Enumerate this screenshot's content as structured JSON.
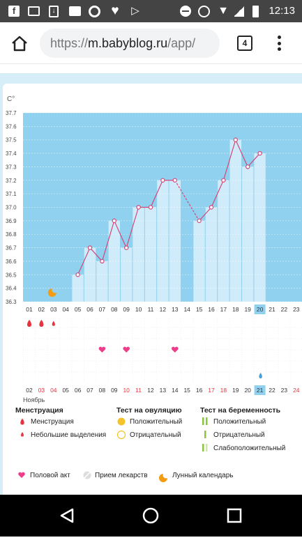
{
  "status_bar": {
    "time": "12:13",
    "left_icons": [
      "facebook-icon",
      "image-icon",
      "download-icon",
      "message-icon",
      "chrome-icon",
      "heart-icon",
      "play-store-icon"
    ],
    "right_icons": [
      "dnd-icon",
      "alarm-icon",
      "wifi-icon",
      "signal-icon",
      "battery-icon"
    ]
  },
  "browser": {
    "url_prefix": "https://",
    "url_host": "m.babyblog.ru",
    "url_path": "/app/",
    "tab_count": "4"
  },
  "chart_data": {
    "type": "line",
    "unit_label": "C°",
    "ylim": [
      36.3,
      37.7
    ],
    "y_ticks": [
      "36.3",
      "36.4",
      "36.5",
      "36.6",
      "36.7",
      "36.8",
      "36.9",
      "37.0",
      "37.1",
      "37.2",
      "37.3",
      "37.4",
      "37.5",
      "37.6",
      "37.7"
    ],
    "x_days": [
      "01",
      "02",
      "03",
      "04",
      "05",
      "06",
      "07",
      "08",
      "09",
      "10",
      "11",
      "12",
      "13",
      "14",
      "15",
      "16",
      "17",
      "18",
      "19",
      "20",
      "21",
      "22",
      "23"
    ],
    "highlight_day": "20",
    "temperatures": [
      null,
      null,
      null,
      null,
      36.5,
      36.7,
      36.6,
      36.9,
      36.7,
      37.0,
      37.0,
      37.2,
      37.2,
      null,
      36.9,
      37.0,
      37.2,
      37.5,
      37.3,
      37.4,
      null,
      null,
      null
    ],
    "dashed_gap": [
      13,
      15
    ],
    "menstruation": {
      "full": [
        "01",
        "02"
      ],
      "light": [
        "03"
      ]
    },
    "intercourse": [
      "07",
      "09",
      "13"
    ],
    "moon_day": "03",
    "drop_day": "20",
    "date_row": {
      "days": [
        "02",
        "03",
        "04",
        "05",
        "06",
        "07",
        "08",
        "09",
        "10",
        "11",
        "12",
        "13",
        "14",
        "15",
        "16",
        "17",
        "18",
        "19",
        "20",
        "21",
        "22",
        "23",
        "24"
      ],
      "red_days": [
        "03",
        "04",
        "10",
        "11",
        "17",
        "18",
        "24"
      ],
      "highlight": "21",
      "month": "Ноябрь"
    }
  },
  "legend": {
    "menstruation_title": "Менструация",
    "menstruation_full": "Менструация",
    "menstruation_light": "Небольшие выделения",
    "ovulation_title": "Тест на овуляцию",
    "ovulation_pos": "Положительный",
    "ovulation_neg": "Отрицательный",
    "pregnancy_title": "Тест на беременность",
    "pregnancy_pos": "Положительный",
    "pregnancy_neg": "Отрицательный",
    "pregnancy_weak": "Слабоположительный",
    "intercourse": "Половой акт",
    "medication": "Прием лекарств",
    "lunar": "Лунный календарь",
    "colors": {
      "accent_blue": "#8fd1ee",
      "bar_light": "#d0ecfa",
      "line_pink": "#d4477a",
      "menstruation_red": "#e8323f",
      "heart_pink": "#ee3d8b",
      "ovulation_yellow": "#f4c22b",
      "pregnancy_green": "#8cc63f",
      "moon_orange": "#f39c12"
    }
  }
}
